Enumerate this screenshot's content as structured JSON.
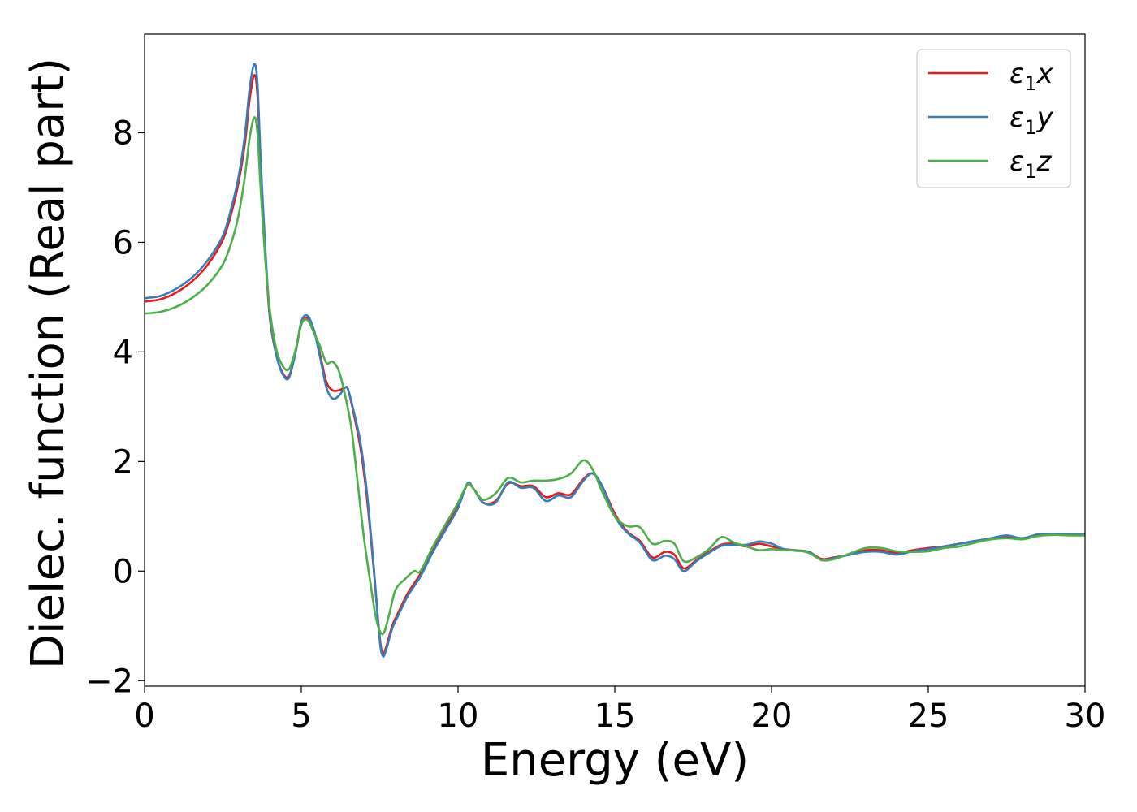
{
  "chart_data": {
    "type": "line",
    "xlabel": "Energy (eV)",
    "ylabel": "Dielec. function (Real part)",
    "xlim": [
      0,
      30
    ],
    "ylim": [
      -2.1,
      9.8
    ],
    "xticks": [
      0,
      5,
      10,
      15,
      20,
      25,
      30
    ],
    "xtick_labels": [
      "0",
      "5",
      "10",
      "15",
      "20",
      "25",
      "30"
    ],
    "yticks": [
      -2,
      0,
      2,
      4,
      6,
      8
    ],
    "ytick_labels": [
      "−2",
      "0",
      "2",
      "4",
      "6",
      "8"
    ],
    "grid": false,
    "legend_position": "top-right",
    "series": [
      {
        "name": "ε1x",
        "legend_symbol": "ε",
        "legend_sub": "1",
        "legend_var": "x",
        "color": "#e41a1c",
        "points": [
          [
            0,
            4.92
          ],
          [
            0.5,
            4.96
          ],
          [
            1.0,
            5.08
          ],
          [
            1.5,
            5.28
          ],
          [
            2.0,
            5.58
          ],
          [
            2.5,
            6.05
          ],
          [
            2.8,
            6.6
          ],
          [
            3.0,
            7.1
          ],
          [
            3.2,
            7.8
          ],
          [
            3.35,
            8.6
          ],
          [
            3.5,
            9.05
          ],
          [
            3.6,
            8.7
          ],
          [
            3.7,
            7.4
          ],
          [
            3.85,
            5.8
          ],
          [
            4.0,
            4.6
          ],
          [
            4.2,
            3.95
          ],
          [
            4.4,
            3.62
          ],
          [
            4.6,
            3.55
          ],
          [
            4.8,
            3.95
          ],
          [
            5.0,
            4.5
          ],
          [
            5.2,
            4.62
          ],
          [
            5.4,
            4.4
          ],
          [
            5.6,
            3.95
          ],
          [
            5.8,
            3.45
          ],
          [
            6.0,
            3.3
          ],
          [
            6.2,
            3.3
          ],
          [
            6.4,
            3.35
          ],
          [
            6.5,
            3.3
          ],
          [
            6.7,
            2.8
          ],
          [
            6.9,
            2.2
          ],
          [
            7.1,
            1.3
          ],
          [
            7.3,
            0.1
          ],
          [
            7.5,
            -1.2
          ],
          [
            7.6,
            -1.5
          ],
          [
            7.7,
            -1.4
          ],
          [
            7.9,
            -1.0
          ],
          [
            8.1,
            -0.75
          ],
          [
            8.4,
            -0.4
          ],
          [
            8.8,
            -0.05
          ],
          [
            9.2,
            0.4
          ],
          [
            9.6,
            0.8
          ],
          [
            10.0,
            1.2
          ],
          [
            10.3,
            1.58
          ],
          [
            10.5,
            1.5
          ],
          [
            10.8,
            1.25
          ],
          [
            11.2,
            1.28
          ],
          [
            11.6,
            1.6
          ],
          [
            12.0,
            1.55
          ],
          [
            12.4,
            1.55
          ],
          [
            12.8,
            1.35
          ],
          [
            13.2,
            1.42
          ],
          [
            13.6,
            1.4
          ],
          [
            14.0,
            1.68
          ],
          [
            14.3,
            1.78
          ],
          [
            14.6,
            1.55
          ],
          [
            15.0,
            1.05
          ],
          [
            15.4,
            0.72
          ],
          [
            15.8,
            0.55
          ],
          [
            16.2,
            0.25
          ],
          [
            16.6,
            0.35
          ],
          [
            16.9,
            0.3
          ],
          [
            17.2,
            0.05
          ],
          [
            17.6,
            0.2
          ],
          [
            18.0,
            0.35
          ],
          [
            18.4,
            0.48
          ],
          [
            18.8,
            0.5
          ],
          [
            19.2,
            0.45
          ],
          [
            19.6,
            0.5
          ],
          [
            20.0,
            0.45
          ],
          [
            20.4,
            0.4
          ],
          [
            20.8,
            0.38
          ],
          [
            21.2,
            0.35
          ],
          [
            21.6,
            0.22
          ],
          [
            22.0,
            0.25
          ],
          [
            22.5,
            0.3
          ],
          [
            23.0,
            0.38
          ],
          [
            23.5,
            0.38
          ],
          [
            24.0,
            0.33
          ],
          [
            24.5,
            0.38
          ],
          [
            25.0,
            0.42
          ],
          [
            25.5,
            0.45
          ],
          [
            26.0,
            0.5
          ],
          [
            26.5,
            0.55
          ],
          [
            27.0,
            0.58
          ],
          [
            27.5,
            0.63
          ],
          [
            28.0,
            0.6
          ],
          [
            28.5,
            0.65
          ],
          [
            29.0,
            0.66
          ],
          [
            29.5,
            0.66
          ],
          [
            30.0,
            0.66
          ]
        ]
      },
      {
        "name": "ε1y",
        "legend_symbol": "ε",
        "legend_sub": "1",
        "legend_var": "y",
        "color": "#377eb8",
        "points": [
          [
            0,
            4.98
          ],
          [
            0.5,
            5.02
          ],
          [
            1.0,
            5.15
          ],
          [
            1.5,
            5.35
          ],
          [
            2.0,
            5.66
          ],
          [
            2.5,
            6.12
          ],
          [
            2.8,
            6.7
          ],
          [
            3.0,
            7.2
          ],
          [
            3.2,
            7.95
          ],
          [
            3.35,
            8.8
          ],
          [
            3.5,
            9.25
          ],
          [
            3.6,
            8.9
          ],
          [
            3.7,
            7.55
          ],
          [
            3.85,
            5.9
          ],
          [
            4.0,
            4.65
          ],
          [
            4.2,
            3.95
          ],
          [
            4.4,
            3.6
          ],
          [
            4.6,
            3.52
          ],
          [
            4.8,
            3.95
          ],
          [
            5.0,
            4.55
          ],
          [
            5.2,
            4.66
          ],
          [
            5.4,
            4.4
          ],
          [
            5.6,
            3.9
          ],
          [
            5.8,
            3.35
          ],
          [
            6.0,
            3.15
          ],
          [
            6.2,
            3.2
          ],
          [
            6.4,
            3.35
          ],
          [
            6.5,
            3.3
          ],
          [
            6.7,
            2.85
          ],
          [
            6.9,
            2.3
          ],
          [
            7.1,
            1.4
          ],
          [
            7.3,
            0.15
          ],
          [
            7.5,
            -1.25
          ],
          [
            7.6,
            -1.55
          ],
          [
            7.7,
            -1.45
          ],
          [
            7.9,
            -1.05
          ],
          [
            8.1,
            -0.8
          ],
          [
            8.4,
            -0.45
          ],
          [
            8.8,
            -0.1
          ],
          [
            9.2,
            0.35
          ],
          [
            9.6,
            0.75
          ],
          [
            10.0,
            1.15
          ],
          [
            10.3,
            1.6
          ],
          [
            10.5,
            1.5
          ],
          [
            10.8,
            1.25
          ],
          [
            11.2,
            1.25
          ],
          [
            11.6,
            1.62
          ],
          [
            12.0,
            1.52
          ],
          [
            12.4,
            1.52
          ],
          [
            12.8,
            1.28
          ],
          [
            13.2,
            1.38
          ],
          [
            13.6,
            1.35
          ],
          [
            14.0,
            1.65
          ],
          [
            14.3,
            1.78
          ],
          [
            14.6,
            1.55
          ],
          [
            15.0,
            1.0
          ],
          [
            15.4,
            0.7
          ],
          [
            15.8,
            0.52
          ],
          [
            16.2,
            0.2
          ],
          [
            16.6,
            0.28
          ],
          [
            16.9,
            0.22
          ],
          [
            17.2,
            0.0
          ],
          [
            17.6,
            0.18
          ],
          [
            18.0,
            0.33
          ],
          [
            18.4,
            0.46
          ],
          [
            18.8,
            0.48
          ],
          [
            19.2,
            0.48
          ],
          [
            19.6,
            0.54
          ],
          [
            20.0,
            0.5
          ],
          [
            20.4,
            0.4
          ],
          [
            20.8,
            0.37
          ],
          [
            21.2,
            0.35
          ],
          [
            21.6,
            0.2
          ],
          [
            22.0,
            0.24
          ],
          [
            22.5,
            0.3
          ],
          [
            23.0,
            0.35
          ],
          [
            23.5,
            0.35
          ],
          [
            24.0,
            0.3
          ],
          [
            24.5,
            0.36
          ],
          [
            25.0,
            0.4
          ],
          [
            25.5,
            0.45
          ],
          [
            26.0,
            0.5
          ],
          [
            26.5,
            0.55
          ],
          [
            27.0,
            0.6
          ],
          [
            27.5,
            0.65
          ],
          [
            28.0,
            0.6
          ],
          [
            28.5,
            0.67
          ],
          [
            29.0,
            0.68
          ],
          [
            29.5,
            0.67
          ],
          [
            30.0,
            0.67
          ]
        ]
      },
      {
        "name": "ε1z",
        "legend_symbol": "ε",
        "legend_sub": "1",
        "legend_var": "z",
        "color": "#4daf4a",
        "points": [
          [
            0,
            4.7
          ],
          [
            0.5,
            4.73
          ],
          [
            1.0,
            4.82
          ],
          [
            1.5,
            4.98
          ],
          [
            2.0,
            5.22
          ],
          [
            2.5,
            5.6
          ],
          [
            2.8,
            6.05
          ],
          [
            3.0,
            6.5
          ],
          [
            3.2,
            7.2
          ],
          [
            3.35,
            7.9
          ],
          [
            3.5,
            8.28
          ],
          [
            3.6,
            8.0
          ],
          [
            3.7,
            7.0
          ],
          [
            3.85,
            5.7
          ],
          [
            4.0,
            4.75
          ],
          [
            4.2,
            4.05
          ],
          [
            4.4,
            3.75
          ],
          [
            4.6,
            3.68
          ],
          [
            4.8,
            4.0
          ],
          [
            5.0,
            4.5
          ],
          [
            5.2,
            4.58
          ],
          [
            5.4,
            4.35
          ],
          [
            5.6,
            4.1
          ],
          [
            5.8,
            3.8
          ],
          [
            6.0,
            3.82
          ],
          [
            6.2,
            3.65
          ],
          [
            6.4,
            3.2
          ],
          [
            6.6,
            2.6
          ],
          [
            6.8,
            1.6
          ],
          [
            7.0,
            0.6
          ],
          [
            7.2,
            -0.2
          ],
          [
            7.4,
            -0.9
          ],
          [
            7.6,
            -1.15
          ],
          [
            7.8,
            -0.8
          ],
          [
            8.0,
            -0.35
          ],
          [
            8.3,
            -0.15
          ],
          [
            8.6,
            0.0
          ],
          [
            8.8,
            0.0
          ],
          [
            9.2,
            0.45
          ],
          [
            9.6,
            0.85
          ],
          [
            10.0,
            1.25
          ],
          [
            10.3,
            1.58
          ],
          [
            10.5,
            1.5
          ],
          [
            10.8,
            1.3
          ],
          [
            11.2,
            1.42
          ],
          [
            11.6,
            1.7
          ],
          [
            12.0,
            1.62
          ],
          [
            12.4,
            1.65
          ],
          [
            12.8,
            1.65
          ],
          [
            13.2,
            1.68
          ],
          [
            13.6,
            1.78
          ],
          [
            14.0,
            2.02
          ],
          [
            14.3,
            1.85
          ],
          [
            14.6,
            1.45
          ],
          [
            15.0,
            1.0
          ],
          [
            15.4,
            0.82
          ],
          [
            15.8,
            0.8
          ],
          [
            16.2,
            0.5
          ],
          [
            16.6,
            0.55
          ],
          [
            16.9,
            0.5
          ],
          [
            17.2,
            0.18
          ],
          [
            17.6,
            0.25
          ],
          [
            18.0,
            0.4
          ],
          [
            18.4,
            0.62
          ],
          [
            18.8,
            0.52
          ],
          [
            19.2,
            0.45
          ],
          [
            19.6,
            0.38
          ],
          [
            20.0,
            0.4
          ],
          [
            20.4,
            0.38
          ],
          [
            20.8,
            0.38
          ],
          [
            21.2,
            0.33
          ],
          [
            21.6,
            0.2
          ],
          [
            22.0,
            0.22
          ],
          [
            22.5,
            0.32
          ],
          [
            23.0,
            0.42
          ],
          [
            23.5,
            0.42
          ],
          [
            24.0,
            0.36
          ],
          [
            24.5,
            0.35
          ],
          [
            25.0,
            0.36
          ],
          [
            25.5,
            0.42
          ],
          [
            26.0,
            0.45
          ],
          [
            26.5,
            0.52
          ],
          [
            27.0,
            0.58
          ],
          [
            27.5,
            0.6
          ],
          [
            28.0,
            0.58
          ],
          [
            28.5,
            0.64
          ],
          [
            29.0,
            0.66
          ],
          [
            29.5,
            0.65
          ],
          [
            30.0,
            0.65
          ]
        ]
      }
    ]
  }
}
